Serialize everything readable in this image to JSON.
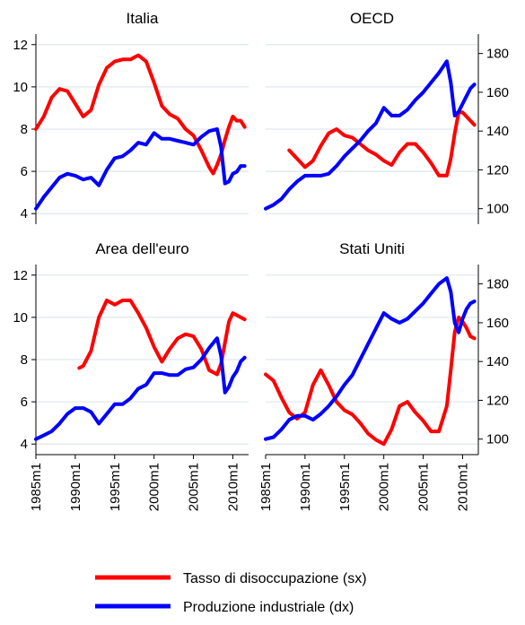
{
  "chart_data": {
    "type": "line",
    "layout": "2x2 small multiples; left axis (sx) = unemployment rate, right axis (dx) = industrial production index",
    "left_axis": {
      "ylim": [
        3.5,
        12.5
      ],
      "ticks": [
        "4",
        "6",
        "8",
        "10",
        "12"
      ]
    },
    "right_axis": {
      "ylim": [
        92,
        190
      ],
      "ticks": [
        "100",
        "120",
        "140",
        "160",
        "180"
      ]
    },
    "x_axis": {
      "xlim": [
        1985,
        2012
      ],
      "ticks": [
        "1985m1",
        "1990m1",
        "1995m1",
        "2000m1",
        "2005m1",
        "2010m1"
      ]
    },
    "grid": "horizontal",
    "colors": {
      "unemployment": "#ff0000",
      "production": "#0000ff"
    },
    "legend": {
      "placement": "bottom-center",
      "items": [
        {
          "label": "Tasso di disoccupazione (sx)",
          "color": "#ff0000"
        },
        {
          "label": "Produzione industriale (dx)",
          "color": "#0000ff"
        }
      ]
    },
    "panels": [
      {
        "title": "Italia",
        "unemployment": {
          "x": [
            1985,
            1986,
            1987,
            1988,
            1989,
            1990,
            1991,
            1992,
            1993,
            1994,
            1995,
            1996,
            1997,
            1998,
            1999,
            2000,
            2001,
            2002,
            2003,
            2004,
            2005,
            2006,
            2007,
            2007.5,
            2008,
            2008.5,
            2009,
            2009.5,
            2010,
            2010.5,
            2011,
            2011.5
          ],
          "y": [
            8.0,
            8.6,
            9.5,
            9.9,
            9.8,
            9.2,
            8.6,
            8.9,
            10.1,
            10.9,
            11.2,
            11.3,
            11.3,
            11.5,
            11.2,
            10.2,
            9.1,
            8.7,
            8.5,
            8.0,
            7.7,
            7.0,
            6.2,
            5.9,
            6.3,
            6.8,
            7.5,
            8.1,
            8.6,
            8.4,
            8.4,
            8.1
          ]
        },
        "production": {
          "x": [
            1985,
            1986,
            1987,
            1988,
            1989,
            1990,
            1991,
            1992,
            1993,
            1994,
            1995,
            1996,
            1997,
            1998,
            1999,
            2000,
            2001,
            2002,
            2003,
            2004,
            2005,
            2006,
            2007,
            2008,
            2008.5,
            2009,
            2009.5,
            2010,
            2010.5,
            2011,
            2011.5
          ],
          "y": [
            100,
            106,
            111,
            116,
            118,
            117,
            115,
            116,
            112,
            120,
            126,
            127,
            130,
            134,
            133,
            139,
            136,
            136,
            135,
            134,
            133,
            137,
            140,
            141,
            132,
            113,
            114,
            118,
            119,
            122,
            122
          ]
        }
      },
      {
        "title": "OECD",
        "unemployment": {
          "x": [
            1988,
            1989,
            1990,
            1991,
            1992,
            1993,
            1994,
            1995,
            1996,
            1997,
            1998,
            1999,
            2000,
            2001,
            2002,
            2003,
            2004,
            2005,
            2006,
            2007,
            2008,
            2008.5,
            2009,
            2009.5,
            2010,
            2010.5,
            2011,
            2011.5
          ],
          "y": [
            7.0,
            6.6,
            6.2,
            6.5,
            7.2,
            7.8,
            8.0,
            7.7,
            7.6,
            7.3,
            7.0,
            6.8,
            6.5,
            6.3,
            6.9,
            7.3,
            7.3,
            6.9,
            6.4,
            5.8,
            5.8,
            6.6,
            7.8,
            8.8,
            8.8,
            8.6,
            8.4,
            8.2
          ]
        },
        "production": {
          "x": [
            1985,
            1986,
            1987,
            1988,
            1989,
            1990,
            1991,
            1992,
            1993,
            1994,
            1995,
            1996,
            1997,
            1998,
            1999,
            2000,
            2001,
            2002,
            2003,
            2004,
            2005,
            2006,
            2007,
            2008,
            2008.5,
            2009,
            2009.5,
            2010,
            2010.5,
            2011,
            2011.5
          ],
          "y": [
            100,
            102,
            105,
            110,
            114,
            117,
            117,
            117,
            118,
            122,
            127,
            131,
            135,
            140,
            144,
            152,
            148,
            148,
            151,
            156,
            160,
            165,
            170,
            176,
            165,
            148,
            150,
            154,
            158,
            162,
            164
          ]
        }
      },
      {
        "title": "Area dell'euro",
        "unemployment": {
          "x": [
            1990.5,
            1991,
            1992,
            1993,
            1994,
            1995,
            1996,
            1997,
            1998,
            1999,
            2000,
            2001,
            2002,
            2003,
            2004,
            2005,
            2006,
            2007,
            2008,
            2008.5,
            2009,
            2009.5,
            2010,
            2010.5,
            2011,
            2011.5
          ],
          "y": [
            7.6,
            7.7,
            8.4,
            10.0,
            10.8,
            10.6,
            10.8,
            10.8,
            10.2,
            9.5,
            8.6,
            7.9,
            8.5,
            9.0,
            9.2,
            9.1,
            8.5,
            7.5,
            7.3,
            7.8,
            8.8,
            9.8,
            10.2,
            10.1,
            10.0,
            9.9
          ]
        },
        "production": {
          "x": [
            1985,
            1986,
            1987,
            1988,
            1989,
            1990,
            1991,
            1992,
            1993,
            1994,
            1995,
            1996,
            1997,
            1998,
            1999,
            2000,
            2001,
            2002,
            2003,
            2004,
            2005,
            2006,
            2007,
            2008,
            2008.5,
            2009,
            2009.5,
            2010,
            2010.5,
            2011,
            2011.5
          ],
          "y": [
            100,
            102,
            104,
            108,
            113,
            116,
            116,
            114,
            108,
            113,
            118,
            118,
            121,
            126,
            128,
            134,
            134,
            133,
            133,
            136,
            137,
            141,
            147,
            152,
            143,
            124,
            127,
            132,
            135,
            140,
            142
          ]
        }
      },
      {
        "title": "Stati Uniti",
        "unemployment": {
          "x": [
            1985,
            1986,
            1987,
            1988,
            1989,
            1990,
            1991,
            1992,
            1993,
            1994,
            1995,
            1996,
            1997,
            1998,
            1999,
            2000,
            2001,
            2002,
            2003,
            2004,
            2005,
            2006,
            2007,
            2008,
            2008.5,
            2009,
            2009.5,
            2010,
            2010.5,
            2011,
            2011.5
          ],
          "y": [
            7.3,
            7.0,
            6.2,
            5.5,
            5.2,
            5.5,
            6.8,
            7.5,
            6.8,
            6.0,
            5.6,
            5.4,
            5.0,
            4.5,
            4.2,
            4.0,
            4.7,
            5.8,
            6.0,
            5.5,
            5.1,
            4.6,
            4.6,
            5.8,
            7.5,
            9.3,
            10.0,
            9.8,
            9.5,
            9.1,
            9.0
          ]
        },
        "production": {
          "x": [
            1985,
            1986,
            1987,
            1988,
            1989,
            1990,
            1991,
            1992,
            1993,
            1994,
            1995,
            1996,
            1997,
            1998,
            1999,
            2000,
            2001,
            2002,
            2003,
            2004,
            2005,
            2006,
            2007,
            2008,
            2008.5,
            2009,
            2009.5,
            2010,
            2010.5,
            2011,
            2011.5
          ],
          "y": [
            100,
            101,
            105,
            110,
            112,
            112,
            110,
            113,
            117,
            122,
            128,
            133,
            141,
            149,
            157,
            165,
            162,
            160,
            162,
            166,
            170,
            175,
            180,
            183,
            176,
            160,
            155,
            162,
            167,
            170,
            171
          ]
        }
      }
    ]
  }
}
